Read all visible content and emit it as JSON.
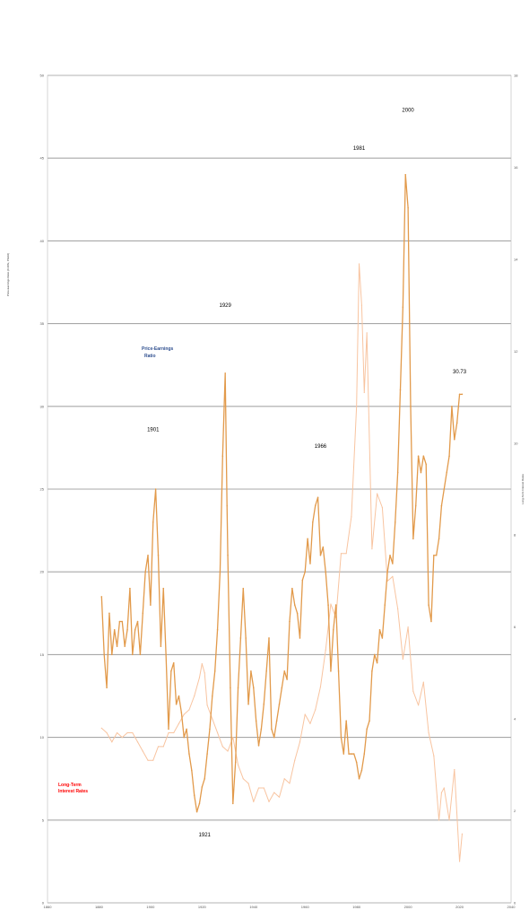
{
  "chart_data": {
    "type": "line",
    "title": "",
    "ylabel": "Price-Earnings Ratio (CAPE, P/E10)",
    "y2label": "Long-Term Interest Rates",
    "xlim": [
      1860,
      2040
    ],
    "ylim": [
      0,
      50
    ],
    "y2lim": [
      0,
      18
    ],
    "x_ticks": [
      "1860",
      "1880",
      "1900",
      "1920",
      "1940",
      "1960",
      "1980",
      "2000",
      "2020",
      "2040"
    ],
    "y_ticks": [
      "0",
      "5",
      "10",
      "15",
      "20",
      "25",
      "30",
      "35",
      "40",
      "45",
      "50"
    ],
    "y2_ticks": [
      "0",
      "2",
      "4",
      "6",
      "8",
      "10",
      "12",
      "14",
      "16",
      "18"
    ],
    "grid": true,
    "series": [
      {
        "name": "Price-Earnings Ratio",
        "axis": "left",
        "color": "#e29a4b",
        "x": [
          1881,
          1882,
          1883,
          1884,
          1885,
          1886,
          1887,
          1888,
          1889,
          1890,
          1891,
          1892,
          1893,
          1894,
          1895,
          1896,
          1897,
          1898,
          1899,
          1900,
          1901,
          1902,
          1903,
          1904,
          1905,
          1906,
          1907,
          1908,
          1909,
          1910,
          1911,
          1912,
          1913,
          1914,
          1915,
          1916,
          1917,
          1918,
          1919,
          1920,
          1921,
          1922,
          1923,
          1924,
          1925,
          1926,
          1927,
          1928,
          1929,
          1929.7,
          1930,
          1931,
          1932,
          1933,
          1934,
          1935,
          1936,
          1937,
          1938,
          1939,
          1940,
          1941,
          1942,
          1943,
          1944,
          1945,
          1946,
          1947,
          1948,
          1949,
          1950,
          1951,
          1952,
          1953,
          1954,
          1955,
          1956,
          1957,
          1958,
          1959,
          1960,
          1961,
          1962,
          1963,
          1964,
          1965,
          1966,
          1967,
          1968,
          1969,
          1970,
          1971,
          1972,
          1973,
          1974,
          1975,
          1976,
          1977,
          1978,
          1979,
          1980,
          1981,
          1982,
          1983,
          1984,
          1985,
          1986,
          1987,
          1988,
          1989,
          1990,
          1991,
          1992,
          1993,
          1994,
          1995,
          1996,
          1997,
          1998,
          1999,
          2000,
          2001,
          2002,
          2003,
          2004,
          2005,
          2006,
          2007,
          2008,
          2009,
          2010,
          2011,
          2012,
          2013,
          2014,
          2015,
          2016,
          2017,
          2018,
          2019,
          2020,
          2021
        ],
        "y": [
          18.5,
          15.0,
          13.0,
          17.5,
          15.0,
          16.5,
          15.5,
          17.0,
          17.0,
          15.5,
          16.5,
          19.0,
          15.0,
          16.5,
          17.0,
          15.0,
          17.5,
          20.0,
          21.0,
          18.0,
          23.0,
          25.0,
          21.0,
          15.5,
          19.0,
          15.0,
          10.5,
          14.0,
          14.5,
          12.0,
          12.5,
          11.5,
          10.0,
          10.5,
          9.0,
          8.0,
          6.5,
          5.5,
          6.0,
          7.0,
          7.5,
          9.0,
          10.5,
          12.5,
          14.0,
          16.5,
          20.0,
          27.0,
          32.0,
          24.0,
          21.0,
          13.0,
          6.0,
          8.5,
          13.0,
          16.0,
          19.0,
          16.0,
          12.0,
          14.0,
          13.0,
          11.0,
          9.5,
          10.5,
          12.0,
          14.0,
          16.0,
          10.5,
          10.0,
          11.0,
          12.0,
          13.0,
          14.0,
          13.5,
          17.0,
          19.0,
          18.0,
          17.5,
          16.0,
          19.5,
          20.0,
          22.0,
          20.5,
          23.0,
          24.0,
          24.5,
          21.0,
          21.5,
          20.0,
          18.0,
          14.0,
          16.5,
          18.0,
          14.0,
          10.0,
          9.0,
          11.0,
          9.0,
          9.0,
          9.0,
          8.5,
          7.5,
          8.0,
          9.0,
          10.5,
          11.0,
          14.0,
          15.0,
          14.5,
          16.5,
          16.0,
          18.0,
          20.0,
          21.0,
          20.5,
          23.0,
          26.0,
          31.0,
          36.0,
          44.0,
          42.0,
          30.0,
          22.0,
          24.0,
          27.0,
          26.0,
          27.0,
          26.5,
          18.0,
          17.0,
          21.0,
          21.0,
          22.0,
          24.0,
          25.0,
          26.0,
          27.0,
          30.0,
          28.0,
          29.0,
          30.73,
          30.73
        ]
      },
      {
        "name": "Long-Term Interest Rates",
        "axis": "right",
        "color": "#f8c4a0",
        "x": [
          1881,
          1883,
          1885,
          1887,
          1889,
          1891,
          1893,
          1895,
          1897,
          1899,
          1901,
          1903,
          1905,
          1907,
          1909,
          1911,
          1913,
          1915,
          1917,
          1919,
          1920,
          1921,
          1922,
          1924,
          1926,
          1928,
          1930,
          1932,
          1934,
          1936,
          1938,
          1940,
          1942,
          1944,
          1946,
          1948,
          1950,
          1952,
          1954,
          1956,
          1958,
          1960,
          1962,
          1964,
          1966,
          1968,
          1970,
          1972,
          1974,
          1976,
          1978,
          1980,
          1981,
          1982,
          1983,
          1984,
          1986,
          1988,
          1990,
          1992,
          1994,
          1996,
          1998,
          2000,
          2002,
          2004,
          2006,
          2008,
          2010,
          2012,
          2013,
          2014,
          2016,
          2018,
          2020,
          2021
        ],
        "y": [
          3.8,
          3.7,
          3.5,
          3.7,
          3.6,
          3.7,
          3.7,
          3.5,
          3.3,
          3.1,
          3.1,
          3.4,
          3.4,
          3.7,
          3.7,
          3.9,
          4.1,
          4.2,
          4.5,
          4.9,
          5.2,
          5.0,
          4.3,
          4.0,
          3.7,
          3.4,
          3.3,
          3.6,
          3.0,
          2.7,
          2.6,
          2.2,
          2.5,
          2.5,
          2.2,
          2.4,
          2.3,
          2.7,
          2.6,
          3.1,
          3.5,
          4.1,
          3.9,
          4.2,
          4.7,
          5.5,
          6.5,
          6.2,
          7.6,
          7.6,
          8.4,
          10.8,
          13.9,
          13.0,
          11.1,
          12.4,
          7.7,
          8.9,
          8.6,
          7.0,
          7.1,
          6.4,
          5.3,
          6.0,
          4.6,
          4.3,
          4.8,
          3.7,
          3.2,
          1.8,
          2.4,
          2.5,
          1.8,
          2.9,
          0.9,
          1.5
        ]
      }
    ],
    "annotations": [
      {
        "text": "1901",
        "x": 1901,
        "y": 28.5
      },
      {
        "text": "1921",
        "x": 1921,
        "y": 4.0
      },
      {
        "text": "1929",
        "x": 1929,
        "y": 36.0
      },
      {
        "text": "1966",
        "x": 1966,
        "y": 27.5
      },
      {
        "text": "1981",
        "x": 1981,
        "y": 45.5
      },
      {
        "text": "2000",
        "x": 2000,
        "y": 47.8
      },
      {
        "text": "30.73",
        "x": 2020,
        "y": 32.0
      }
    ],
    "series_labels": {
      "pe": [
        "Price-Earnings",
        "Ratio"
      ],
      "rate": [
        "Long-Term",
        "Interest Rates"
      ]
    }
  }
}
